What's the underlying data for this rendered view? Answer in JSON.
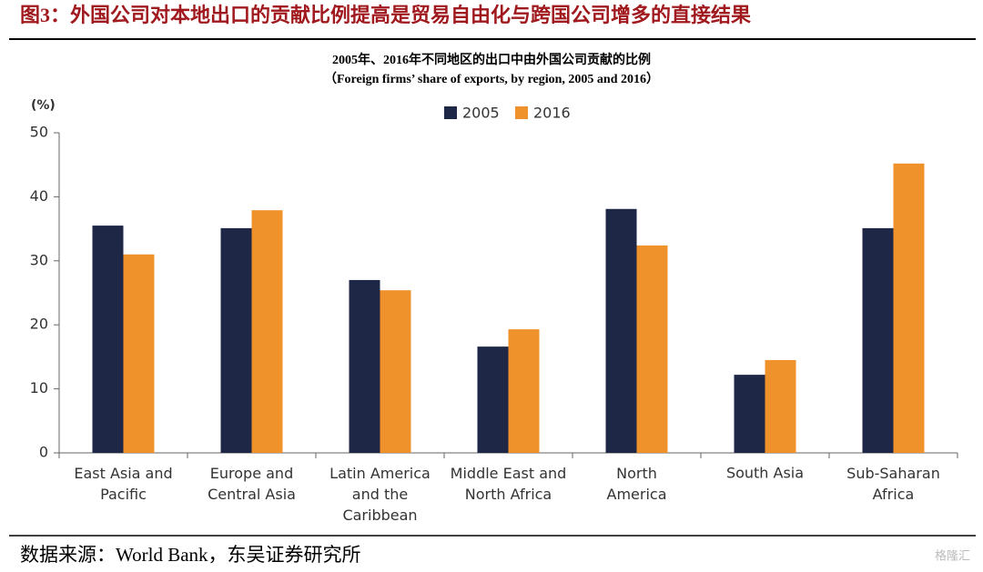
{
  "figure_title": "图3：外国公司对本地出口的贡献比例提高是贸易自由化与跨国公司增多的直接结果",
  "source": "数据来源：World Bank，东吴证券研究所",
  "watermark": "格隆汇",
  "chart_data": {
    "type": "bar",
    "title": "2005年、2016年不同地区的出口中由外国公司贡献的比例",
    "subtitle": "（Foreign firms’ share of exports, by region, 2005 and 2016）",
    "y_label": "(%)",
    "categories": [
      "East Asia and\nPacific",
      "Europe and\nCentral Asia",
      "Latin America\nand the\nCaribbean",
      "Middle East and\nNorth Africa",
      "North\nAmerica",
      "South Asia",
      "Sub-Saharan\nAfrica"
    ],
    "series": [
      {
        "name": "2005",
        "color": "#1f2747",
        "values": [
          35.5,
          35.1,
          27.0,
          16.6,
          38.1,
          12.2,
          35.1
        ]
      },
      {
        "name": "2016",
        "color": "#f0922b",
        "values": [
          31.0,
          37.9,
          25.4,
          19.3,
          32.4,
          14.5,
          45.2
        ]
      }
    ],
    "ylim": [
      0,
      50
    ],
    "yticks": [
      0,
      10,
      20,
      30,
      40,
      50
    ],
    "grid": false,
    "legend": "top"
  }
}
